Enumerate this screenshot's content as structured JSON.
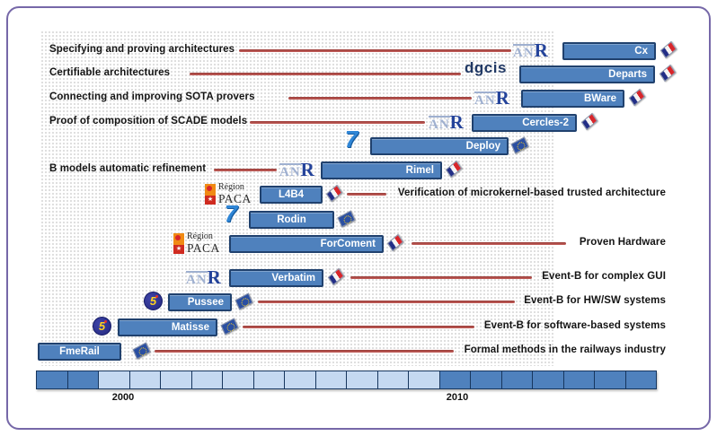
{
  "logos": {
    "anr_an": "AN",
    "anr_r": "R",
    "dgcis": "dgcis",
    "paca_line1": "Région",
    "paca_line2": "PACA",
    "fp5": "5",
    "fp7": "7"
  },
  "projects": [
    {
      "name": "Cx",
      "description": "Specifying and proving architectures",
      "description_side": "left",
      "funder": "ANR",
      "flag": "france"
    },
    {
      "name": "Departs",
      "description": "Certifiable architectures",
      "description_side": "left",
      "funder": "DGCIS",
      "flag": "france"
    },
    {
      "name": "BWare",
      "description": "Connecting and improving SOTA provers",
      "description_side": "left",
      "funder": "ANR",
      "flag": "france"
    },
    {
      "name": "Cercles-2",
      "description": "Proof of composition of SCADE models",
      "description_side": "left",
      "funder": "ANR",
      "flag": "france"
    },
    {
      "name": "Deploy",
      "description": "",
      "description_side": "none",
      "funder": "FP7",
      "flag": "eu"
    },
    {
      "name": "Rimel",
      "description": "B models automatic refinement",
      "description_side": "left",
      "funder": "ANR",
      "flag": "france"
    },
    {
      "name": "L4B4",
      "description": "Verification of microkernel-based trusted architecture",
      "description_side": "right",
      "funder": "Région PACA",
      "flag": "france"
    },
    {
      "name": "Rodin",
      "description": "",
      "description_side": "none",
      "funder": "FP7",
      "flag": "eu"
    },
    {
      "name": "ForComent",
      "description": "Proven Hardware",
      "description_side": "right",
      "funder": "Région PACA",
      "flag": "france"
    },
    {
      "name": "Verbatim",
      "description": "Event-B for complex GUI",
      "description_side": "right",
      "funder": "ANR",
      "flag": "france"
    },
    {
      "name": "Pussee",
      "description": "Event-B for HW/SW systems",
      "description_side": "right",
      "funder": "FP5",
      "flag": "eu"
    },
    {
      "name": "Matisse",
      "description": "Event-B for software-based systems",
      "description_side": "right",
      "funder": "FP5",
      "flag": "eu"
    },
    {
      "name": "FmeRail",
      "description": "Formal methods in the railways industry",
      "description_side": "right",
      "funder": "",
      "flag": "eu"
    }
  ],
  "timeline": {
    "start_year_label": "2000",
    "end_year_label": "2010",
    "cells": [
      "dark",
      "dark",
      "light",
      "light",
      "light",
      "light",
      "light",
      "light",
      "light",
      "light",
      "light",
      "light",
      "light",
      "dark",
      "dark",
      "dark",
      "dark",
      "dark",
      "dark",
      "dark"
    ]
  },
  "colors": {
    "bar_fill": "#4f81bd",
    "bar_border": "#20416e",
    "connector_line": "#b04a45",
    "timeline_dark": "#4f81bd",
    "timeline_light": "#c5d9f1",
    "frame_border": "#7668a8"
  }
}
